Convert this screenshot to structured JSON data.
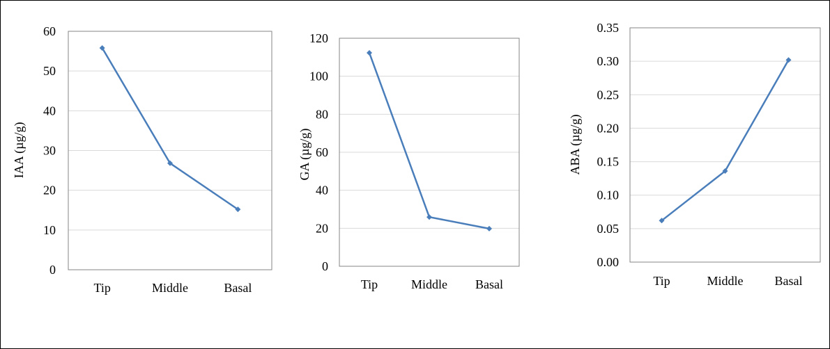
{
  "chart_data": [
    {
      "type": "line",
      "categories": [
        "Tip",
        "Middle",
        "Basal"
      ],
      "series": [
        {
          "values": [
            55.8,
            26.8,
            15.2
          ]
        }
      ],
      "ylabel": "IAA (µg/g)",
      "ylim": [
        0,
        60
      ],
      "yticks": [
        0,
        10,
        20,
        30,
        40,
        50,
        60
      ],
      "ytick_labels": [
        "0",
        "10",
        "20",
        "30",
        "40",
        "50",
        "60"
      ],
      "grid": true,
      "color": "#4a7ebb"
    },
    {
      "type": "line",
      "categories": [
        "Tip",
        "Middle",
        "Basal"
      ],
      "series": [
        {
          "values": [
            112.3,
            25.9,
            19.8
          ]
        }
      ],
      "ylabel": "GA  (µg/g)",
      "ylim": [
        0,
        120
      ],
      "yticks": [
        0,
        20,
        40,
        60,
        80,
        100,
        120
      ],
      "ytick_labels": [
        "0",
        "20",
        "40",
        "60",
        "80",
        "100",
        "120"
      ],
      "grid": true,
      "color": "#4a7ebb"
    },
    {
      "type": "line",
      "categories": [
        "Tip",
        "Middle",
        "Basal"
      ],
      "series": [
        {
          "values": [
            0.062,
            0.136,
            0.302
          ]
        }
      ],
      "ylabel": "ABA (µg/g)",
      "ylim": [
        0,
        0.35
      ],
      "yticks": [
        0,
        0.05,
        0.1,
        0.15,
        0.2,
        0.25,
        0.3,
        0.35
      ],
      "ytick_labels": [
        "0.00",
        "0.05",
        "0.10",
        "0.15",
        "0.20",
        "0.25",
        "0.30",
        "0.35"
      ],
      "grid": true,
      "color": "#4a7ebb"
    }
  ]
}
